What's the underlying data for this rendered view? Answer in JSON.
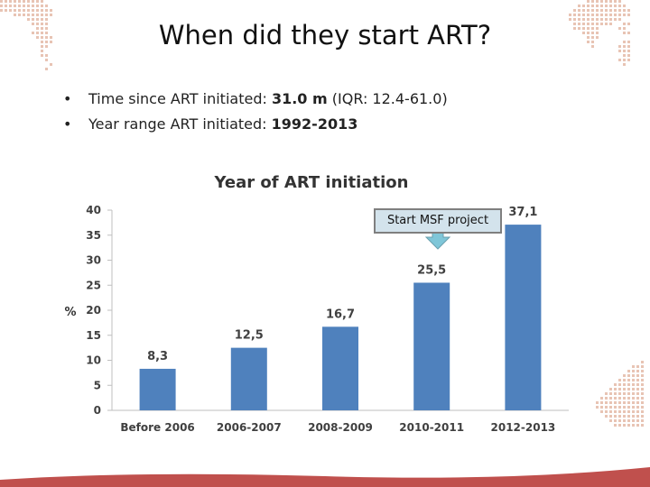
{
  "slide": {
    "title": "When did they start ART?",
    "bullets": [
      {
        "prefix": "Time since ART initiated: ",
        "value": "31.0 m",
        "suffix": " (IQR: 12.4-61.0)"
      },
      {
        "prefix": "Year range ART initiated: ",
        "value": "1992-2013",
        "suffix": ""
      }
    ]
  },
  "colors": {
    "bar": "#4f81bd",
    "accent_bottom": "#c0504d",
    "map_dots": "#e8c4b4",
    "callout_fill": "#d3e3ec",
    "callout_arrow": "#7fc6d8"
  },
  "callout": {
    "text": "Start MSF project"
  },
  "chart_data": {
    "type": "bar",
    "title": "Year of ART initiation",
    "ylabel": "%",
    "xlabel": "",
    "categories": [
      "Before 2006",
      "2006-2007",
      "2008-2009",
      "2010-2011",
      "2012-2013"
    ],
    "values": [
      8.3,
      12.5,
      16.7,
      25.5,
      37.1
    ],
    "data_labels": [
      "8,3",
      "12,5",
      "16,7",
      "25,5",
      "37,1"
    ],
    "ylim": [
      0,
      40
    ],
    "yticks": [
      0,
      5,
      10,
      15,
      20,
      25,
      30,
      35,
      40
    ],
    "grid": false,
    "legend": "none"
  }
}
